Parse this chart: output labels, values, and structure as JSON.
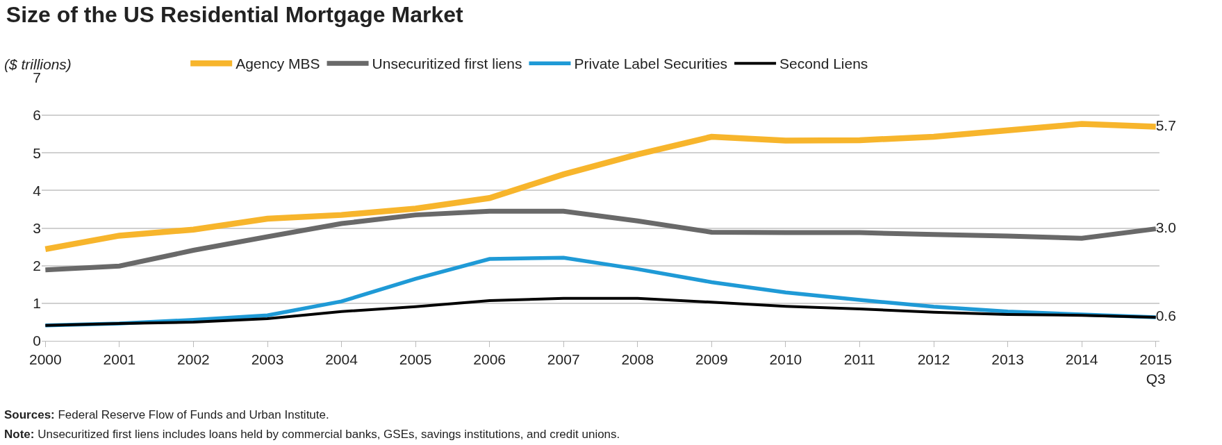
{
  "chart_data": {
    "type": "line",
    "title": "Size of the US Residential Mortgage Market",
    "ylabel": "($ trillions)",
    "categories": [
      "2000",
      "2001",
      "2002",
      "2003",
      "2004",
      "2005",
      "2006",
      "2007",
      "2008",
      "2009",
      "2010",
      "2011",
      "2012",
      "2013",
      "2014",
      "2015\nQ3"
    ],
    "series": [
      {
        "name": "Agency MBS",
        "color": "#f7b52c",
        "values": [
          2.44,
          2.8,
          2.96,
          3.25,
          3.35,
          3.52,
          3.8,
          4.43,
          4.96,
          5.43,
          5.33,
          5.34,
          5.43,
          5.6,
          5.77,
          5.7
        ],
        "value_labels": [
          null,
          null,
          null,
          null,
          null,
          null,
          null,
          null,
          null,
          null,
          null,
          null,
          null,
          null,
          null,
          "5.7"
        ]
      },
      {
        "name": "Unsecuritized first liens",
        "color": "#696969",
        "values": [
          1.89,
          1.99,
          2.41,
          2.77,
          3.12,
          3.35,
          3.45,
          3.45,
          3.19,
          2.89,
          2.88,
          2.88,
          2.83,
          2.79,
          2.73,
          2.98
        ],
        "value_labels": [
          null,
          null,
          null,
          null,
          null,
          null,
          null,
          null,
          null,
          null,
          null,
          null,
          null,
          null,
          null,
          "3.0"
        ]
      },
      {
        "name": "Private Label Securities",
        "color": "#1f9ad6",
        "values": [
          0.41,
          0.46,
          0.56,
          0.68,
          1.05,
          1.65,
          2.18,
          2.21,
          1.91,
          1.56,
          1.29,
          1.09,
          0.91,
          0.78,
          0.7,
          0.63
        ]
      },
      {
        "name": "Second Liens",
        "color": "#000000",
        "values": [
          0.41,
          0.46,
          0.5,
          0.59,
          0.78,
          0.91,
          1.07,
          1.13,
          1.13,
          1.03,
          0.92,
          0.85,
          0.76,
          0.7,
          0.68,
          0.63
        ],
        "value_labels": [
          null,
          null,
          null,
          null,
          null,
          null,
          null,
          null,
          null,
          null,
          null,
          null,
          null,
          null,
          null,
          "0.6"
        ]
      }
    ],
    "ylim": [
      0,
      7
    ],
    "yticks": [
      0,
      1,
      2,
      3,
      4,
      5,
      6,
      7
    ],
    "grid": "y",
    "legend": "top",
    "marker": "none",
    "line_style": "solid",
    "annotations": [
      "Sources: Federal Reserve Flow of Funds and Urban Institute.",
      "Note: Unsecuritized first liens includes loans held by commercial banks, GSEs, savings institutions, and credit unions."
    ]
  }
}
